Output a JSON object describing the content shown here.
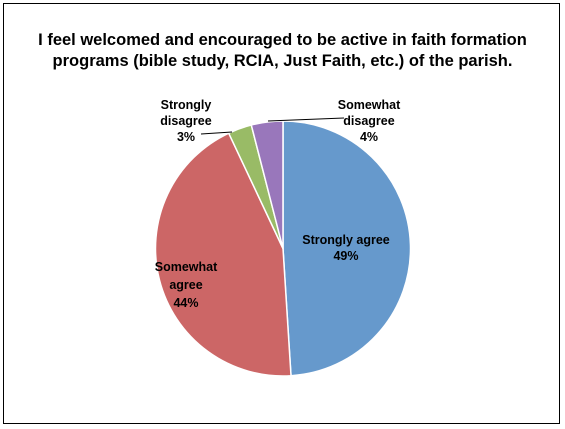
{
  "chart_data": {
    "type": "pie",
    "title_lines": [
      "I feel welcomed and encouraged to be active in faith formation",
      "programs (bible study, RCIA, Just Faith, etc.) of the parish."
    ],
    "slices": [
      {
        "label_lines": [
          "Strongly agree"
        ],
        "pct_label": "49%",
        "value": 49,
        "color": "#6699cc"
      },
      {
        "label_lines": [
          "Somewhat",
          "agree"
        ],
        "pct_label": "44%",
        "value": 44,
        "color": "#cc6666"
      },
      {
        "label_lines": [
          "Strongly",
          "disagree"
        ],
        "pct_label": "3%",
        "value": 3,
        "color": "#99bb66"
      },
      {
        "label_lines": [
          "Somewhat",
          "disagree"
        ],
        "pct_label": "4%",
        "value": 4,
        "color": "#9977bb"
      }
    ],
    "legend": "none"
  }
}
